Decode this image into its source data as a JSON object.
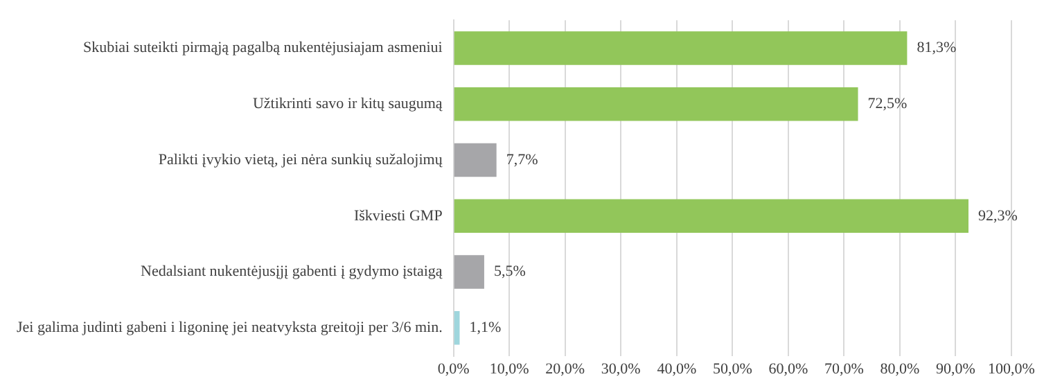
{
  "chart_data": {
    "type": "bar",
    "orientation": "horizontal",
    "categories": [
      "Skubiai suteikti pirmąją pagalbą nukentėjusiajam asmeniui",
      "Užtikrinti savo ir kitų saugumą",
      "Palikti įvykio vietą, jei nėra sunkių sužalojimų",
      "Iškviesti GMP",
      "Nedalsiant nukentėjusįjį gabenti į gydymo įstaigą",
      "Jei galima judinti gabeni i ligoninę jei neatvyksta greitoji per 3/6 min."
    ],
    "values": [
      81.3,
      72.5,
      7.7,
      92.3,
      5.5,
      1.1
    ],
    "colors": [
      "#92c65a",
      "#92c65a",
      "#a6a6a9",
      "#92c65a",
      "#a6a6a9",
      "#9fd6dd"
    ],
    "value_labels": [
      "81,3%",
      "72,5%",
      "7,7%",
      "92,3%",
      "5,5%",
      "1,1%"
    ],
    "xlim": [
      0,
      100
    ],
    "xticks": [
      {
        "value": 0,
        "label": "0,0%"
      },
      {
        "value": 10,
        "label": "10,0%"
      },
      {
        "value": 20,
        "label": "20,0%"
      },
      {
        "value": 30,
        "label": "30,0%"
      },
      {
        "value": 40,
        "label": "40,0%"
      },
      {
        "value": 50,
        "label": "50,0%"
      },
      {
        "value": 60,
        "label": "60,0%"
      },
      {
        "value": 70,
        "label": "70,0%"
      },
      {
        "value": 80,
        "label": "80,0%"
      },
      {
        "value": 90,
        "label": "90,0%"
      },
      {
        "value": 100,
        "label": "100,0%"
      }
    ],
    "grid": "x",
    "legend": false
  }
}
